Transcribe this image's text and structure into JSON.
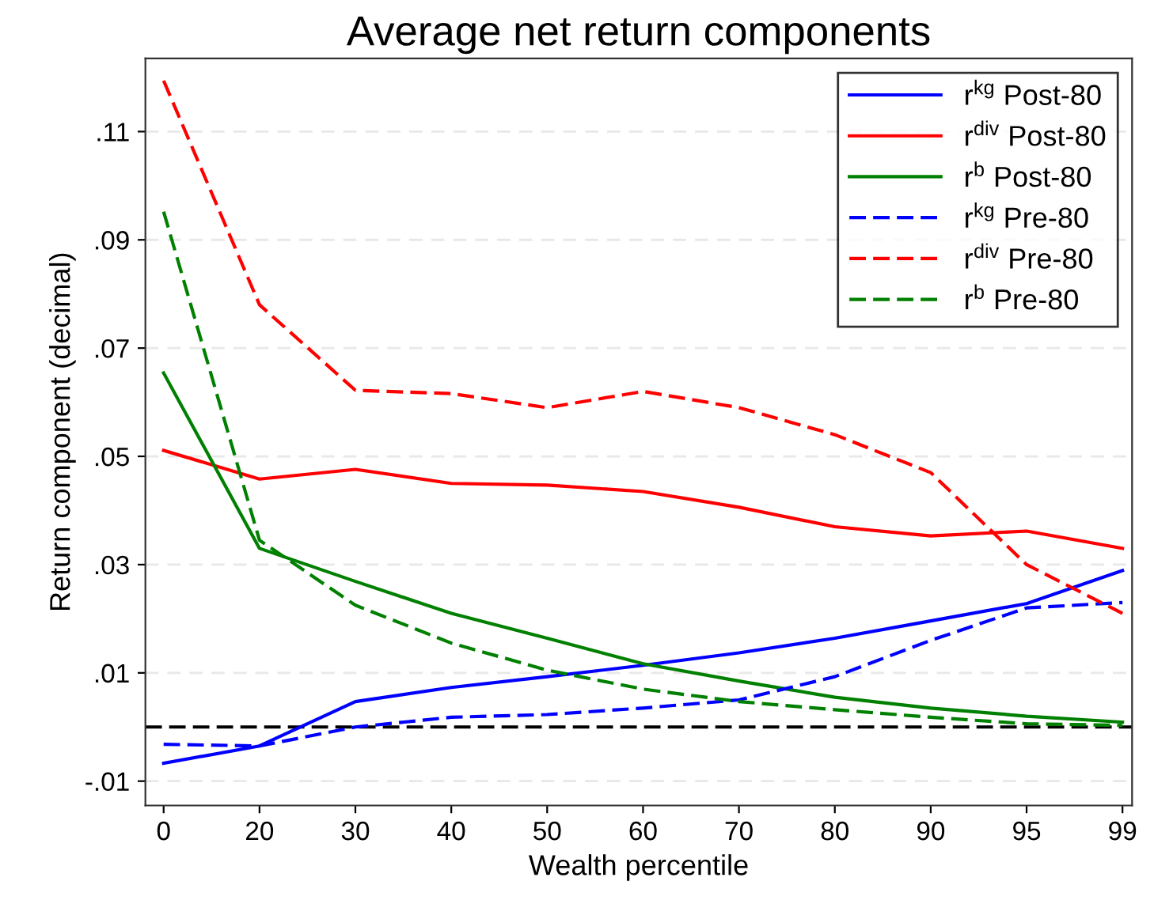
{
  "chart_data": {
    "type": "line",
    "title": "Average net return components",
    "xlabel": "Wealth percentile",
    "ylabel": "Return component (decimal)",
    "categories": [
      "0",
      "20",
      "30",
      "40",
      "50",
      "60",
      "70",
      "80",
      "90",
      "95",
      "99"
    ],
    "series": [
      {
        "name": "r$^{kg}$ Post-80",
        "color": "#0000ff",
        "line_style": "solid",
        "values": [
          -0.0067,
          -0.0035,
          0.0047,
          0.0073,
          0.0093,
          0.0114,
          0.0137,
          0.0164,
          0.0196,
          0.0228,
          0.0289
        ]
      },
      {
        "name": "r$^{div}$ Post-80",
        "color": "#ff0000",
        "line_style": "solid",
        "values": [
          0.0511,
          0.0458,
          0.0476,
          0.045,
          0.0447,
          0.0435,
          0.0406,
          0.037,
          0.0353,
          0.0362,
          0.033
        ]
      },
      {
        "name": "r$^{b}$ Post-80",
        "color": "#008000",
        "line_style": "solid",
        "values": [
          0.0654,
          0.033,
          0.0269,
          0.021,
          0.0164,
          0.0117,
          0.0085,
          0.0055,
          0.0035,
          0.002,
          0.0009
        ]
      },
      {
        "name": "r$^{kg}$ Pre-80",
        "color": "#0000ff",
        "line_style": "dashed",
        "values": [
          -0.0032,
          -0.0035,
          0.0,
          0.0018,
          0.0023,
          0.0035,
          0.005,
          0.0093,
          0.016,
          0.022,
          0.023
        ]
      },
      {
        "name": "r$^{div}$ Pre-80",
        "color": "#ff0000",
        "line_style": "dashed",
        "values": [
          0.1194,
          0.078,
          0.0622,
          0.0616,
          0.059,
          0.062,
          0.059,
          0.054,
          0.047,
          0.03,
          0.021
        ]
      },
      {
        "name": "r$^{b}$ Pre-80",
        "color": "#008000",
        "line_style": "dashed",
        "values": [
          0.0952,
          0.0345,
          0.0225,
          0.0155,
          0.0105,
          0.007,
          0.0047,
          0.0032,
          0.0018,
          0.0006,
          0.0003
        ]
      }
    ],
    "ylim": [
      -0.0145,
      0.1235
    ],
    "yticks": [
      {
        "value": -0.01,
        "label": "-.01"
      },
      {
        "value": 0.01,
        "label": ".01"
      },
      {
        "value": 0.03,
        "label": ".03"
      },
      {
        "value": 0.05,
        "label": ".05"
      },
      {
        "value": 0.07,
        "label": ".07"
      },
      {
        "value": 0.09,
        "label": ".09"
      },
      {
        "value": 0.11,
        "label": ".11"
      }
    ],
    "ref_lines": [
      {
        "axis": "y",
        "value": 0,
        "color": "#000000",
        "line_style": "dashed"
      }
    ],
    "grid": "y",
    "legend": "top right",
    "marker": "none"
  }
}
